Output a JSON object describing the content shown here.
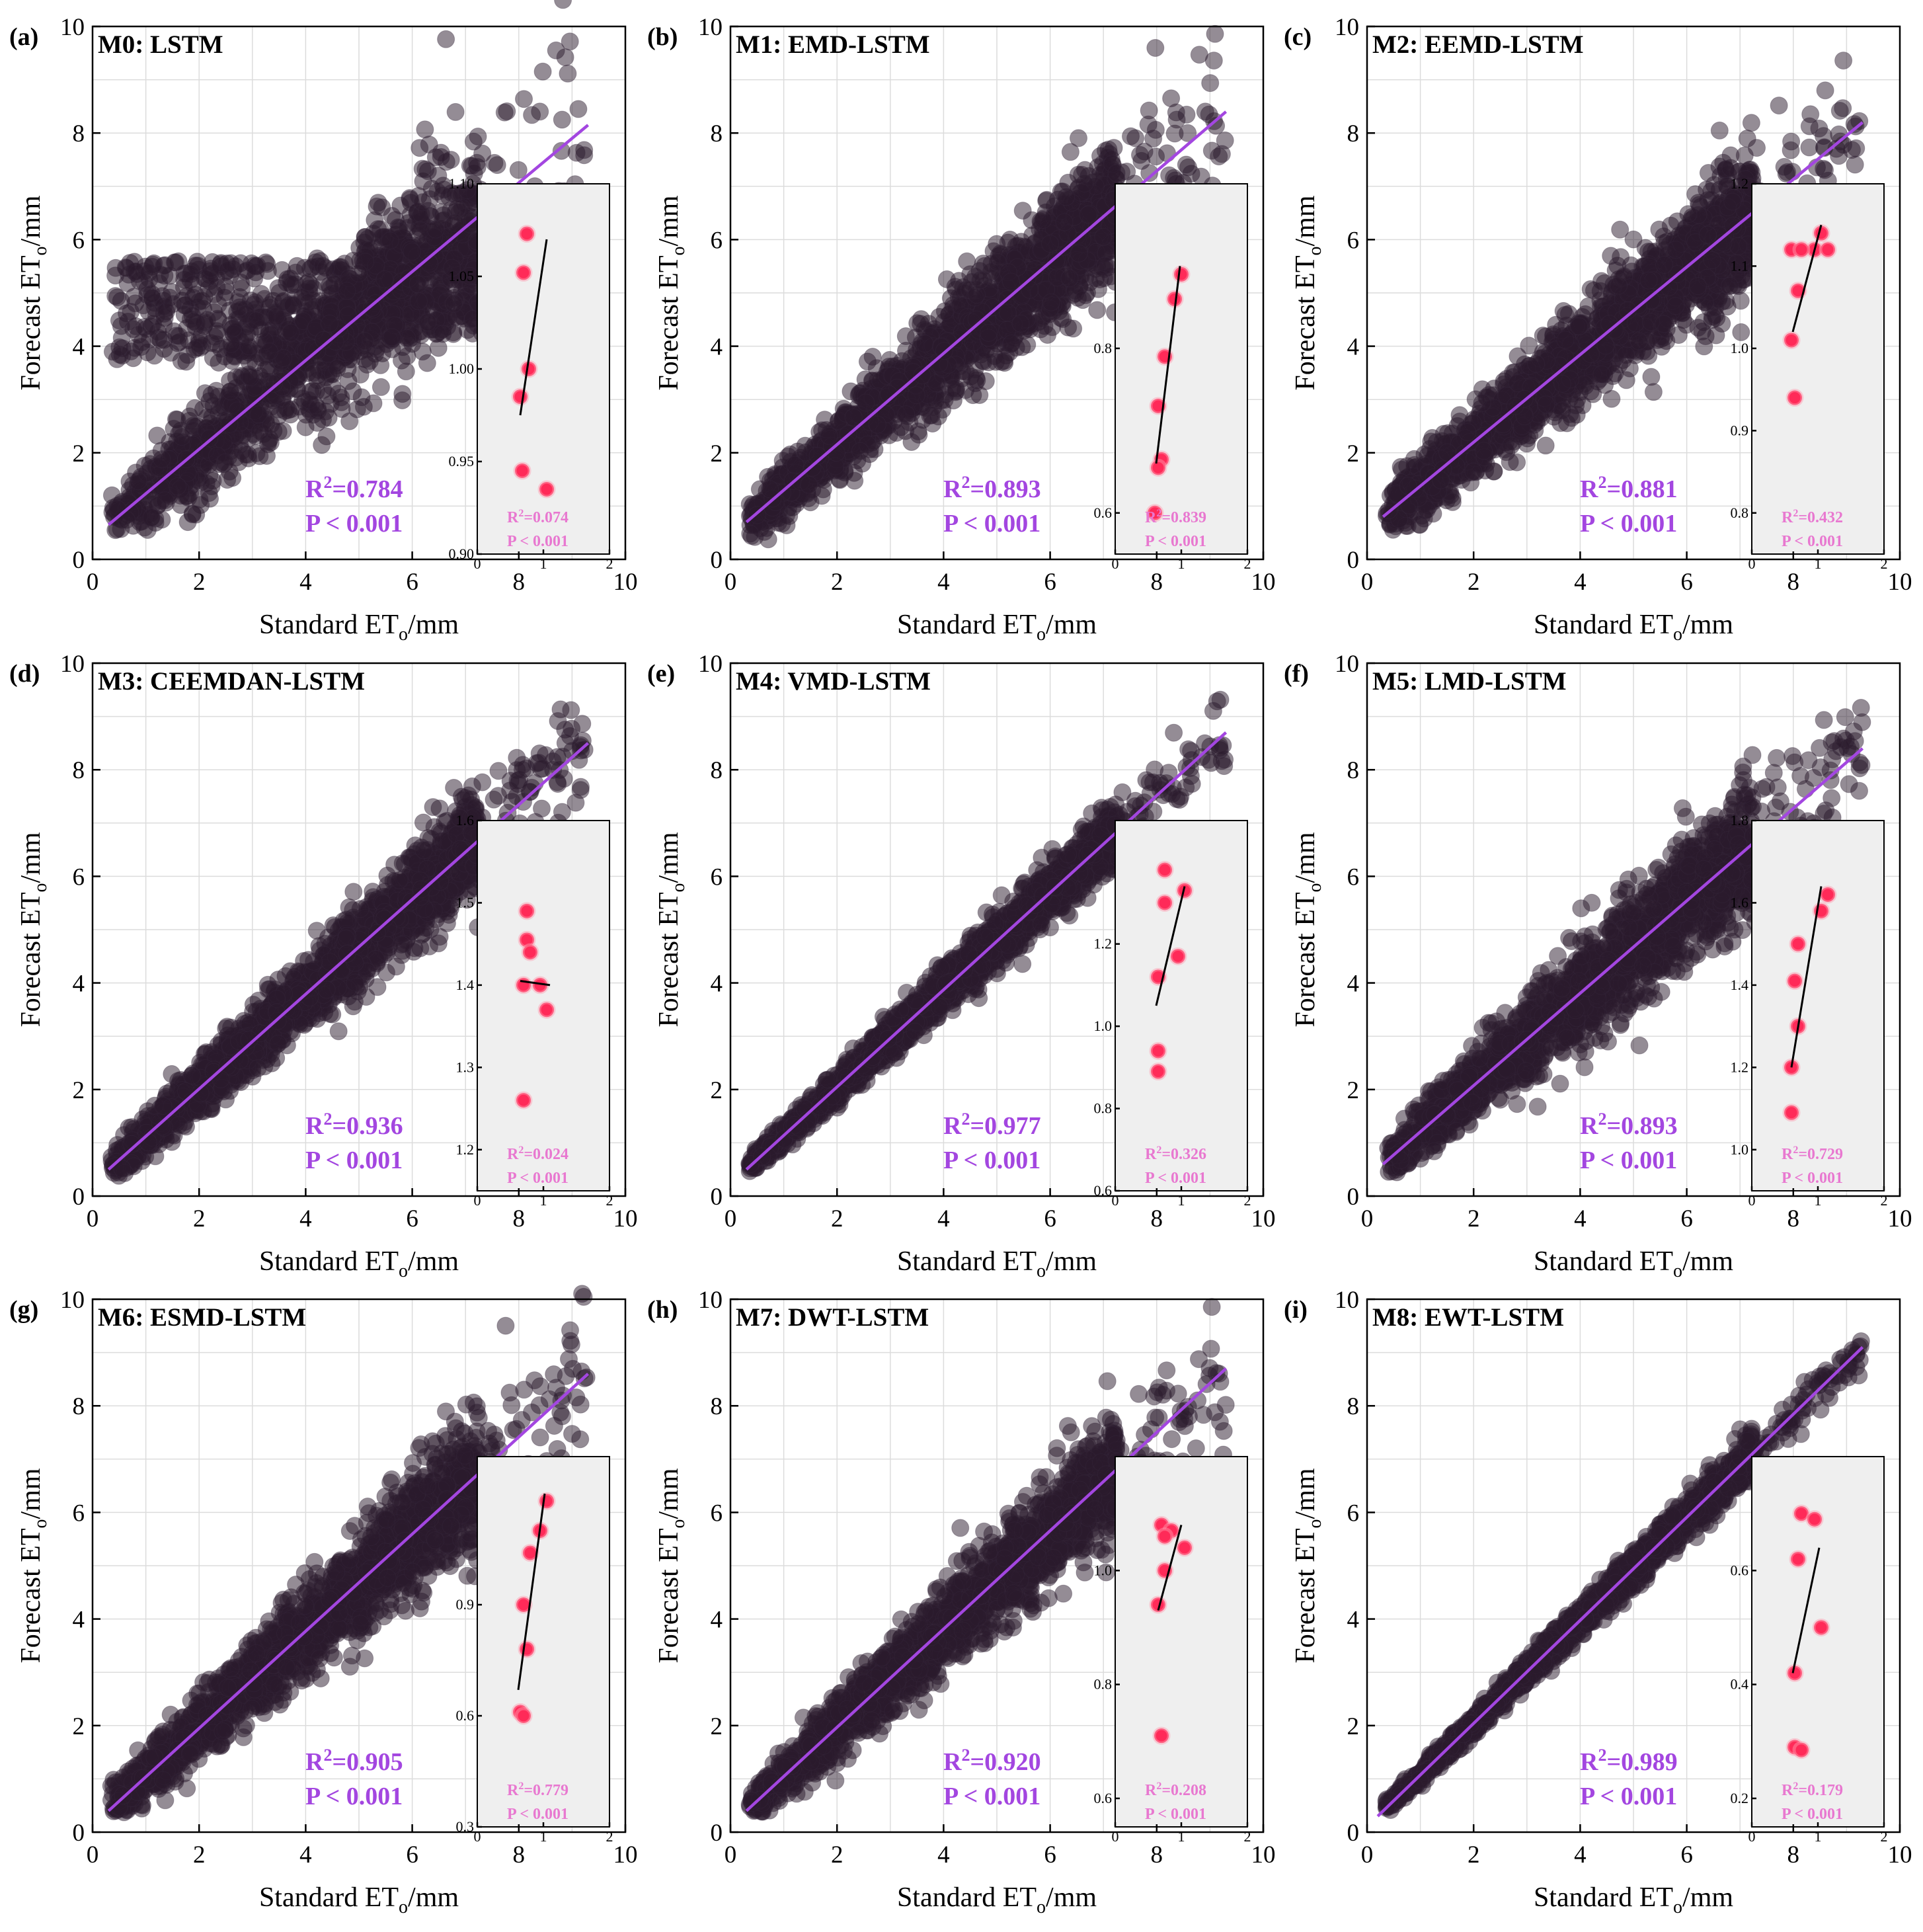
{
  "colors": {
    "fit_line": "#a346e0",
    "stat_main": "#a346e0",
    "stat_inset": "#e878d0",
    "inset_point": "#ff2a58",
    "inset_point_halo": "#ff9cb0",
    "inset_fit": "#000000",
    "inset_bg": "#efefef",
    "scatter": "#2a1a2c"
  },
  "axis_labels": {
    "x": "Standard ETₒ/mm",
    "y": "Forecast ETₒ/mm"
  },
  "chart_data": [
    {
      "type": "scatter",
      "panel": "(a)",
      "title": "M0: LSTM",
      "xlabel": "Standard ETₒ/mm",
      "ylabel": "Forecast ETₒ/mm",
      "xlim": [
        0,
        10
      ],
      "ylim": [
        0,
        10
      ],
      "x_ticks": [
        "0",
        "2",
        "4",
        "6",
        "8",
        "10"
      ],
      "y_ticks": [
        "0",
        "2",
        "4",
        "6",
        "8",
        "10"
      ],
      "fit_line": {
        "x": [
          0.3,
          9.3
        ],
        "y": [
          0.65,
          8.15
        ]
      },
      "r2_label": "R²=0.784",
      "p_label": "P < 0.001",
      "inset": {
        "xlim": [
          0,
          2
        ],
        "ylim": [
          0.9,
          1.1
        ],
        "x_ticks": [
          "0",
          "1",
          "2"
        ],
        "y_ticks": [
          "0.90",
          "0.95",
          "1.00",
          "1.05",
          "1.10"
        ],
        "points": [
          [
            0.75,
            1.073
          ],
          [
            0.7,
            1.052
          ],
          [
            0.78,
            1.0
          ],
          [
            0.65,
            0.985
          ],
          [
            0.68,
            0.945
          ],
          [
            1.05,
            0.935
          ]
        ],
        "fit_line": {
          "x": [
            0.65,
            1.05
          ],
          "y": [
            0.975,
            1.07
          ]
        },
        "r2_label": "R²=0.074",
        "p_label": "P < 0.001"
      }
    },
    {
      "type": "scatter",
      "panel": "(b)",
      "title": "M1: EMD-LSTM",
      "xlabel": "Standard ETₒ/mm",
      "ylabel": "Forecast ETₒ/mm",
      "xlim": [
        0,
        10
      ],
      "ylim": [
        0,
        10
      ],
      "x_ticks": [
        "0",
        "2",
        "4",
        "6",
        "8",
        "10"
      ],
      "y_ticks": [
        "0",
        "2",
        "4",
        "6",
        "8",
        "10"
      ],
      "fit_line": {
        "x": [
          0.3,
          9.3
        ],
        "y": [
          0.7,
          8.4
        ]
      },
      "r2_label": "R²=0.893",
      "p_label": "P < 0.001",
      "inset": {
        "xlim": [
          0,
          2
        ],
        "ylim": [
          0.55,
          1.0
        ],
        "x_ticks": [
          "0",
          "1",
          "2"
        ],
        "y_ticks": [
          "0.6",
          "0.8"
        ],
        "points": [
          [
            1.0,
            0.89
          ],
          [
            0.9,
            0.86
          ],
          [
            0.75,
            0.79
          ],
          [
            0.65,
            0.73
          ],
          [
            0.7,
            0.665
          ],
          [
            0.65,
            0.655
          ],
          [
            0.6,
            0.6
          ]
        ],
        "fit_line": {
          "x": [
            0.62,
            0.98
          ],
          "y": [
            0.66,
            0.9
          ]
        },
        "r2_label": "R²=0.839",
        "p_label": "P < 0.001"
      }
    },
    {
      "type": "scatter",
      "panel": "(c)",
      "title": "M2: EEMD-LSTM",
      "xlabel": "Standard ETₒ/mm",
      "ylabel": "Forecast ETₒ/mm",
      "xlim": [
        0,
        10
      ],
      "ylim": [
        0,
        10
      ],
      "x_ticks": [
        "0",
        "2",
        "4",
        "6",
        "8",
        "10"
      ],
      "y_ticks": [
        "0",
        "2",
        "4",
        "6",
        "8",
        "10"
      ],
      "fit_line": {
        "x": [
          0.3,
          9.3
        ],
        "y": [
          0.8,
          8.2
        ]
      },
      "r2_label": "R²=0.881",
      "p_label": "P < 0.001",
      "inset": {
        "xlim": [
          0,
          2
        ],
        "ylim": [
          0.75,
          1.2
        ],
        "x_ticks": [
          "0",
          "1",
          "2"
        ],
        "y_ticks": [
          "0.8",
          "0.9",
          "1.0",
          "1.1",
          "1.2"
        ],
        "points": [
          [
            1.05,
            1.14
          ],
          [
            0.95,
            1.12
          ],
          [
            1.15,
            1.12
          ],
          [
            0.6,
            1.12
          ],
          [
            0.75,
            1.12
          ],
          [
            0.7,
            1.07
          ],
          [
            0.6,
            1.01
          ],
          [
            0.65,
            0.94
          ]
        ],
        "fit_line": {
          "x": [
            0.62,
            1.05
          ],
          "y": [
            1.02,
            1.15
          ]
        },
        "r2_label": "R²=0.432",
        "p_label": "P < 0.001"
      }
    },
    {
      "type": "scatter",
      "panel": "(d)",
      "title": "M3: CEEMDAN-LSTM",
      "xlabel": "Standard ETₒ/mm",
      "ylabel": "Forecast ETₒ/mm",
      "xlim": [
        0,
        10
      ],
      "ylim": [
        0,
        10
      ],
      "x_ticks": [
        "0",
        "2",
        "4",
        "6",
        "8",
        "10"
      ],
      "y_ticks": [
        "0",
        "2",
        "4",
        "6",
        "8",
        "10"
      ],
      "fit_line": {
        "x": [
          0.3,
          9.3
        ],
        "y": [
          0.5,
          8.5
        ]
      },
      "r2_label": "R²=0.936",
      "p_label": "P < 0.001",
      "inset": {
        "xlim": [
          0,
          2
        ],
        "ylim": [
          1.15,
          1.6
        ],
        "x_ticks": [
          "0",
          "1",
          "2"
        ],
        "y_ticks": [
          "1.2",
          "1.3",
          "1.4",
          "1.5",
          "1.6"
        ],
        "points": [
          [
            0.75,
            1.49
          ],
          [
            0.75,
            1.455
          ],
          [
            0.8,
            1.44
          ],
          [
            0.7,
            1.4
          ],
          [
            0.95,
            1.4
          ],
          [
            1.05,
            1.37
          ],
          [
            0.7,
            1.26
          ]
        ],
        "fit_line": {
          "x": [
            0.65,
            1.1
          ],
          "y": [
            1.405,
            1.4
          ]
        },
        "r2_label": "R²=0.024",
        "p_label": "P < 0.001"
      }
    },
    {
      "type": "scatter",
      "panel": "(e)",
      "title": "M4: VMD-LSTM",
      "xlabel": "Standard ETₒ/mm",
      "ylabel": "Forecast ETₒ/mm",
      "xlim": [
        0,
        10
      ],
      "ylim": [
        0,
        10
      ],
      "x_ticks": [
        "0",
        "2",
        "4",
        "6",
        "8",
        "10"
      ],
      "y_ticks": [
        "0",
        "2",
        "4",
        "6",
        "8",
        "10"
      ],
      "fit_line": {
        "x": [
          0.3,
          9.3
        ],
        "y": [
          0.5,
          8.7
        ]
      },
      "r2_label": "R²=0.977",
      "p_label": "P < 0.001",
      "inset": {
        "xlim": [
          0,
          2
        ],
        "ylim": [
          0.6,
          1.5
        ],
        "x_ticks": [
          "0",
          "1",
          "2"
        ],
        "y_ticks": [
          "0.6",
          "0.8",
          "1.0",
          "1.2"
        ],
        "points": [
          [
            0.75,
            1.38
          ],
          [
            0.75,
            1.3
          ],
          [
            1.05,
            1.33
          ],
          [
            0.95,
            1.17
          ],
          [
            0.65,
            1.12
          ],
          [
            0.65,
            0.94
          ],
          [
            0.65,
            0.89
          ]
        ],
        "fit_line": {
          "x": [
            0.62,
            1.05
          ],
          "y": [
            1.05,
            1.34
          ]
        },
        "r2_label": "R²=0.326",
        "p_label": "P < 0.001"
      }
    },
    {
      "type": "scatter",
      "panel": "(f)",
      "title": "M5: LMD-LSTM",
      "xlabel": "Standard ETₒ/mm",
      "ylabel": "Forecast ETₒ/mm",
      "xlim": [
        0,
        10
      ],
      "ylim": [
        0,
        10
      ],
      "x_ticks": [
        "0",
        "2",
        "4",
        "6",
        "8",
        "10"
      ],
      "y_ticks": [
        "0",
        "2",
        "4",
        "6",
        "8",
        "10"
      ],
      "fit_line": {
        "x": [
          0.3,
          9.3
        ],
        "y": [
          0.6,
          8.4
        ]
      },
      "r2_label": "R²=0.893",
      "p_label": "P < 0.001",
      "inset": {
        "xlim": [
          0,
          2
        ],
        "ylim": [
          0.9,
          1.8
        ],
        "x_ticks": [
          "0",
          "1",
          "2"
        ],
        "y_ticks": [
          "1.0",
          "1.2",
          "1.4",
          "1.6",
          "1.8"
        ],
        "points": [
          [
            1.15,
            1.62
          ],
          [
            1.05,
            1.58
          ],
          [
            0.7,
            1.5
          ],
          [
            0.65,
            1.41
          ],
          [
            0.7,
            1.3
          ],
          [
            0.6,
            1.2
          ],
          [
            0.6,
            1.09
          ]
        ],
        "fit_line": {
          "x": [
            0.6,
            1.05
          ],
          "y": [
            1.2,
            1.64
          ]
        },
        "r2_label": "R²=0.729",
        "p_label": "P < 0.001"
      }
    },
    {
      "type": "scatter",
      "panel": "(g)",
      "title": "M6: ESMD-LSTM",
      "xlabel": "Standard ETₒ/mm",
      "ylabel": "Forecast ETₒ/mm",
      "xlim": [
        0,
        10
      ],
      "ylim": [
        0,
        10
      ],
      "x_ticks": [
        "0",
        "2",
        "4",
        "6",
        "8",
        "10"
      ],
      "y_ticks": [
        "0",
        "2",
        "4",
        "6",
        "8",
        "10"
      ],
      "fit_line": {
        "x": [
          0.3,
          9.3
        ],
        "y": [
          0.4,
          8.6
        ]
      },
      "r2_label": "R²=0.905",
      "p_label": "P < 0.001",
      "inset": {
        "xlim": [
          0,
          2
        ],
        "ylim": [
          0.3,
          1.3
        ],
        "x_ticks": [
          "0",
          "1",
          "2"
        ],
        "y_ticks": [
          "0.3",
          "0.6",
          "0.9"
        ],
        "points": [
          [
            1.05,
            1.18
          ],
          [
            0.95,
            1.1
          ],
          [
            0.8,
            1.04
          ],
          [
            0.7,
            0.9
          ],
          [
            0.75,
            0.78
          ],
          [
            0.65,
            0.61
          ],
          [
            0.7,
            0.6
          ]
        ],
        "fit_line": {
          "x": [
            0.62,
            1.02
          ],
          "y": [
            0.67,
            1.2
          ]
        },
        "r2_label": "R²=0.779",
        "p_label": "P < 0.001"
      }
    },
    {
      "type": "scatter",
      "panel": "(h)",
      "title": "M7: DWT-LSTM",
      "xlabel": "Standard ETₒ/mm",
      "ylabel": "Forecast ETₒ/mm",
      "xlim": [
        0,
        10
      ],
      "ylim": [
        0,
        10
      ],
      "x_ticks": [
        "0",
        "2",
        "4",
        "6",
        "8",
        "10"
      ],
      "y_ticks": [
        "0",
        "2",
        "4",
        "6",
        "8",
        "10"
      ],
      "fit_line": {
        "x": [
          0.3,
          9.3
        ],
        "y": [
          0.4,
          8.7
        ]
      },
      "r2_label": "R²=0.920",
      "p_label": "P < 0.001",
      "inset": {
        "xlim": [
          0,
          2
        ],
        "ylim": [
          0.55,
          1.2
        ],
        "x_ticks": [
          "0",
          "1",
          "2"
        ],
        "y_ticks": [
          "0.6",
          "0.8",
          "1.0"
        ],
        "points": [
          [
            0.7,
            1.08
          ],
          [
            0.85,
            1.07
          ],
          [
            0.75,
            1.06
          ],
          [
            1.05,
            1.04
          ],
          [
            0.75,
            1.0
          ],
          [
            0.65,
            0.94
          ],
          [
            0.7,
            0.71
          ]
        ],
        "fit_line": {
          "x": [
            0.65,
            1.0
          ],
          "y": [
            0.93,
            1.08
          ]
        },
        "r2_label": "R²=0.208",
        "p_label": "P < 0.001"
      }
    },
    {
      "type": "scatter",
      "panel": "(i)",
      "title": "M8: EWT-LSTM",
      "xlabel": "Standard ETₒ/mm",
      "ylabel": "Forecast ETₒ/mm",
      "xlim": [
        0,
        10
      ],
      "ylim": [
        0,
        10
      ],
      "x_ticks": [
        "0",
        "2",
        "4",
        "6",
        "8",
        "10"
      ],
      "y_ticks": [
        "0",
        "2",
        "4",
        "6",
        "8",
        "10"
      ],
      "fit_line": {
        "x": [
          0.2,
          9.3
        ],
        "y": [
          0.3,
          9.1
        ]
      },
      "r2_label": "R²=0.989",
      "p_label": "P < 0.001",
      "inset": {
        "xlim": [
          0,
          2
        ],
        "ylim": [
          0.15,
          0.8
        ],
        "x_ticks": [
          "0",
          "1",
          "2"
        ],
        "y_ticks": [
          "0.2",
          "0.4",
          "0.6"
        ],
        "points": [
          [
            0.75,
            0.7
          ],
          [
            0.95,
            0.69
          ],
          [
            0.7,
            0.62
          ],
          [
            1.05,
            0.5
          ],
          [
            0.65,
            0.42
          ],
          [
            0.65,
            0.29
          ],
          [
            0.75,
            0.285
          ]
        ],
        "fit_line": {
          "x": [
            0.62,
            1.02
          ],
          "y": [
            0.42,
            0.64
          ]
        },
        "r2_label": "R²=0.179",
        "p_label": "P < 0.001"
      }
    }
  ]
}
